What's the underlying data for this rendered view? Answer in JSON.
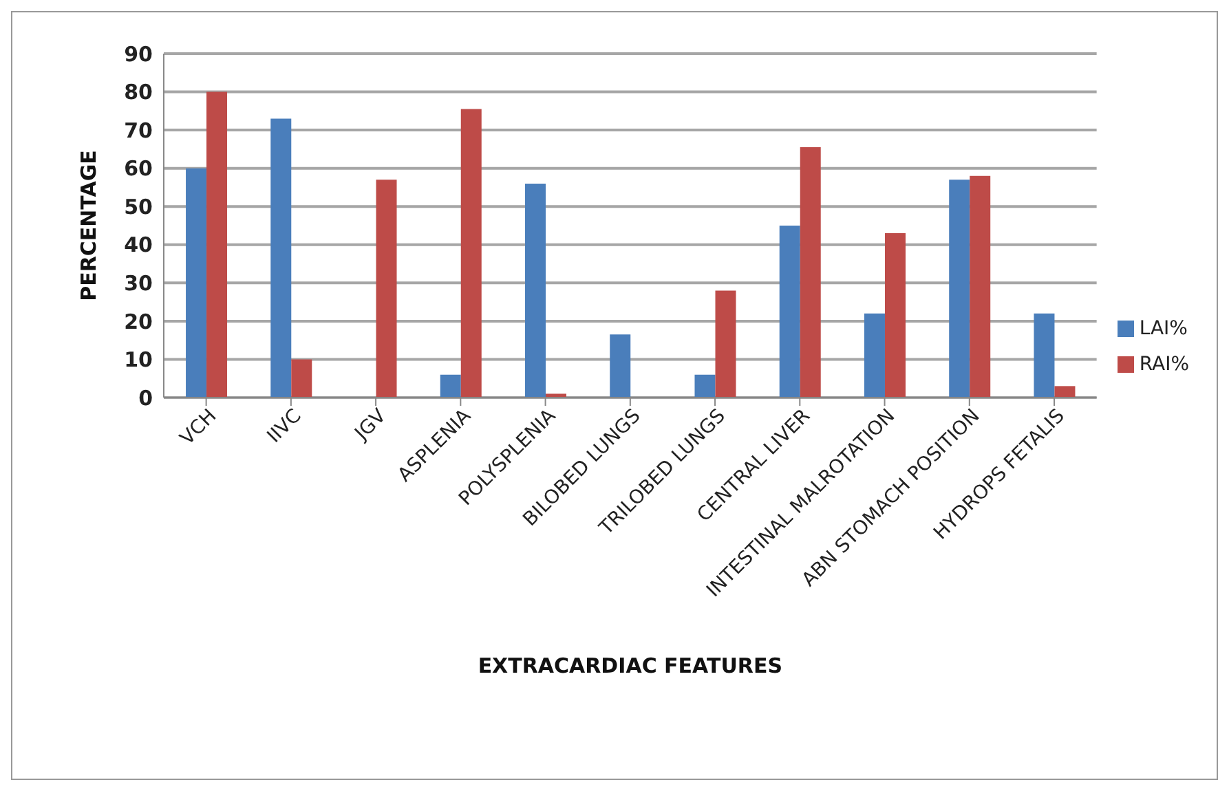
{
  "chart_data": {
    "type": "bar",
    "xlabel": "EXTRACARDIAC  FEATURES",
    "ylabel": "PERCENTAGE",
    "categories": [
      "VCH",
      "IIVC",
      "JGV",
      "ASPLENIA",
      "POLYSPLENIA",
      "BILOBED LUNGS",
      "TRILOBED LUNGS",
      "CENTRAL LIVER",
      "INTESTINAL  MALROTATION",
      "ABN STOMACH POSITION",
      "HYDROPS FETALIS"
    ],
    "series": [
      {
        "name": "LAI%",
        "color": "#4a7ebb",
        "values": [
          60,
          73,
          0,
          6,
          56,
          16.5,
          6,
          45,
          22,
          57,
          22
        ]
      },
      {
        "name": "RAI%",
        "color": "#be4b48",
        "values": [
          80,
          10,
          57,
          75.5,
          1,
          0,
          28,
          65.5,
          43,
          58,
          3
        ]
      }
    ],
    "ylim": [
      0,
      90
    ],
    "yticks": [
      0,
      10,
      20,
      30,
      40,
      50,
      60,
      70,
      80,
      90
    ],
    "grid": "y",
    "legend": "right"
  }
}
